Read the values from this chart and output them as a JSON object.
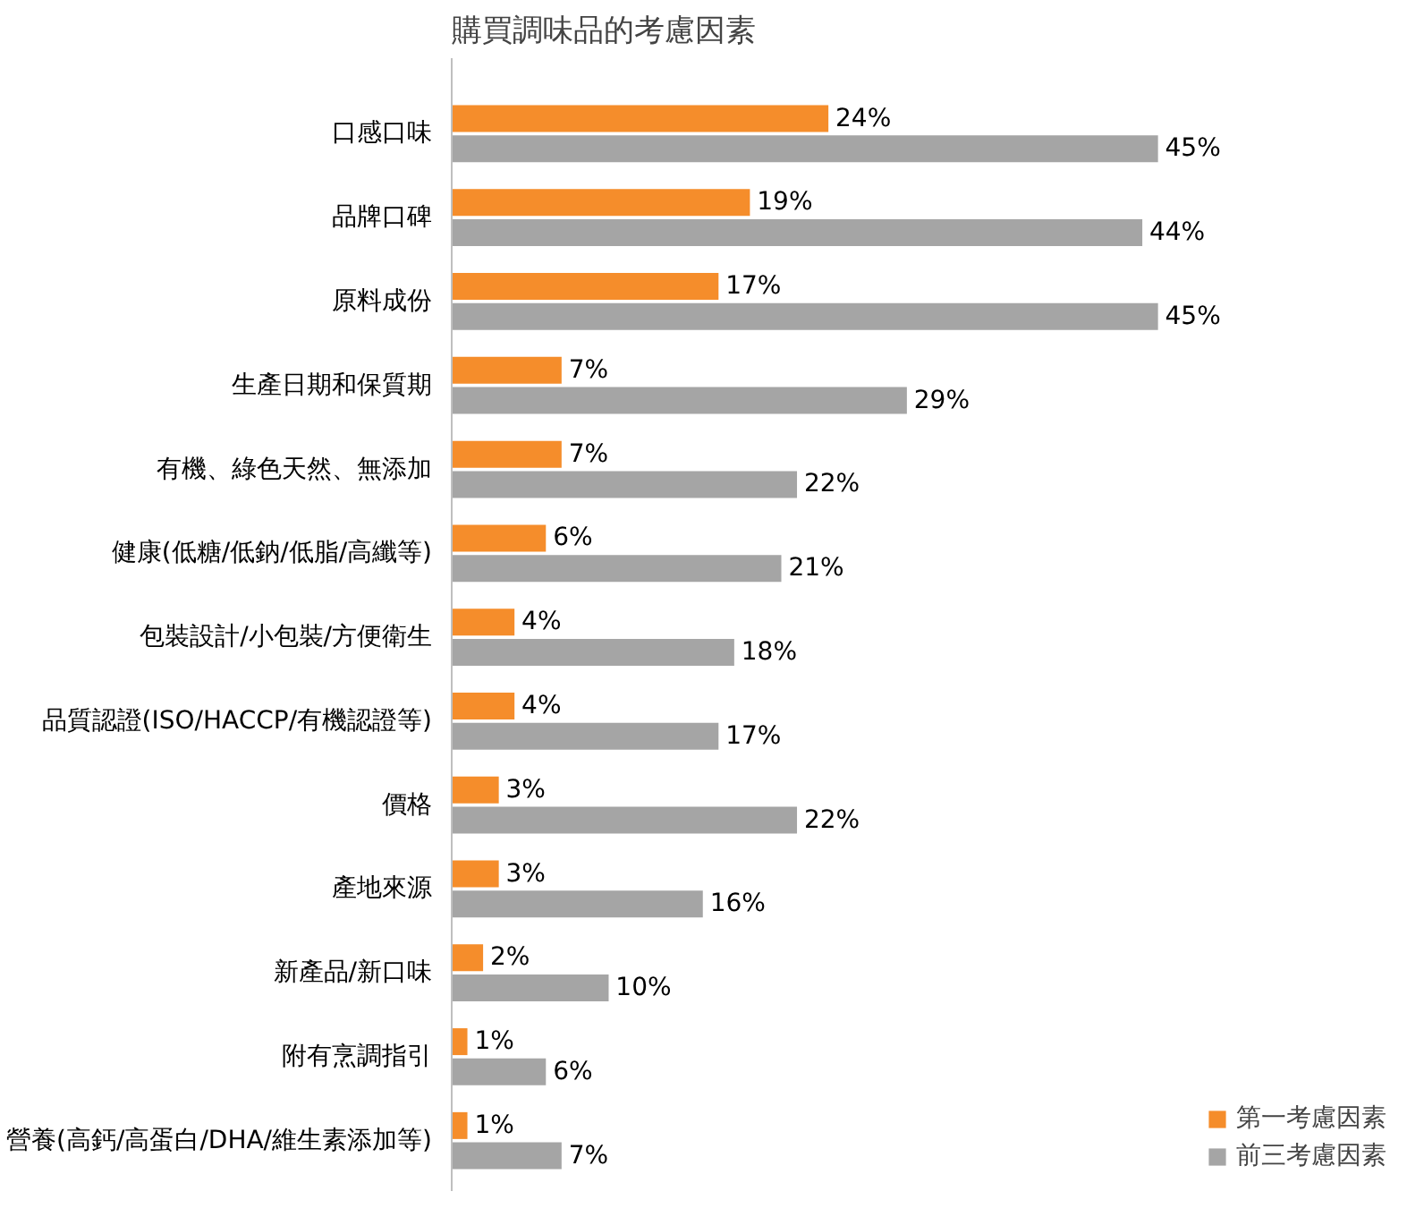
{
  "chart_data": {
    "type": "bar",
    "orientation": "horizontal",
    "title": "購買調味品的考慮因素",
    "categories": [
      "口感口味",
      "品牌口碑",
      "原料成份",
      "生產日期和保質期",
      "有機、綠色天然、無添加",
      "健康(低糖/低鈉/低脂/高纖等)",
      "包裝設計/小包裝/方便衛生",
      "品質認證(ISO/HACCP/有機認證等)",
      "價格",
      "產地來源",
      "新產品/新口味",
      "附有烹調指引",
      "營養(高鈣/高蛋白/DHA/維生素添加等)"
    ],
    "series": [
      {
        "name": "第一考慮因素",
        "color": "#f58d2b",
        "values": [
          24,
          19,
          17,
          7,
          7,
          6,
          4,
          4,
          3,
          3,
          2,
          1,
          1
        ],
        "value_labels": [
          "24%",
          "19%",
          "17%",
          "7%",
          "7%",
          "6%",
          "4%",
          "4%",
          "3%",
          "3%",
          "2%",
          "1%",
          "1%"
        ]
      },
      {
        "name": "前三考慮因素",
        "color": "#a5a5a5",
        "values": [
          45,
          44,
          45,
          29,
          22,
          21,
          18,
          17,
          22,
          16,
          10,
          6,
          7
        ],
        "value_labels": [
          "45%",
          "44%",
          "45%",
          "29%",
          "22%",
          "21%",
          "18%",
          "17%",
          "22%",
          "16%",
          "10%",
          "6%",
          "7%"
        ]
      }
    ],
    "legend": "bottom right",
    "grid": false
  }
}
